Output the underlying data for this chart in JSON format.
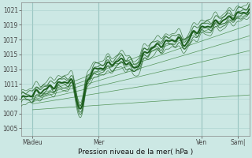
{
  "xlabel": "Pression niveau de la mer( hPa )",
  "ylim": [
    1004,
    1022
  ],
  "yticks": [
    1005,
    1007,
    1009,
    1011,
    1013,
    1015,
    1017,
    1019,
    1021
  ],
  "xtick_labels": [
    "Màdeu",
    "Mer",
    "Ven",
    "Sam|"
  ],
  "xtick_positions": [
    0.05,
    0.34,
    0.79,
    0.95
  ],
  "bg_color": "#cce8e4",
  "grid_color": "#a8d0cc",
  "dark_green": "#1a5c1a",
  "mid_green": "#2d7a2d",
  "light_green": "#4da04d"
}
